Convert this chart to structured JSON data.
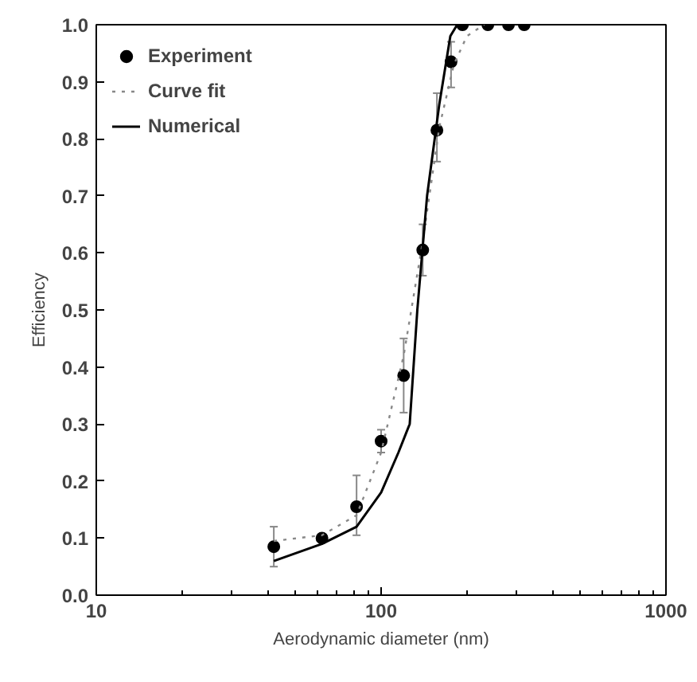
{
  "chart_data": {
    "type": "line",
    "xlabel": "Aerodynamic diameter (nm)",
    "ylabel": "Efficiency",
    "log": "x",
    "xlim": [
      10,
      1000
    ],
    "xticks": [
      10,
      100,
      1000
    ],
    "ylim": [
      0,
      1
    ],
    "yticks": [
      {
        "value": 0,
        "label": "0.0"
      },
      0.1,
      0.2,
      0.3,
      0.4,
      0.5,
      0.6,
      0.7,
      0.8,
      0.9,
      {
        "value": 1,
        "label": "1.0"
      }
    ],
    "grid": false,
    "legend": "top left",
    "series": [
      {
        "name": "Experiment",
        "type": "scatter",
        "marker": "circle",
        "color": "#000000",
        "x": [
          42,
          62,
          82,
          100,
          120,
          140,
          157,
          176,
          193,
          237,
          280,
          318
        ],
        "values": [
          0.085,
          0.1,
          0.155,
          0.27,
          0.385,
          0.605,
          0.815,
          0.935,
          1.0,
          1.0,
          1.0,
          1.0
        ],
        "errors": [
          [
            0.05,
            0.12
          ],
          null,
          [
            0.105,
            0.21
          ],
          [
            0.25,
            0.29
          ],
          [
            0.32,
            0.45
          ],
          [
            0.56,
            0.65
          ],
          [
            0.76,
            0.88
          ],
          [
            0.89,
            0.97
          ],
          null,
          null,
          null,
          null
        ]
      },
      {
        "name": "Curve fit",
        "type": "line",
        "line_style": "dotted",
        "color": "#888888",
        "x": [
          42,
          62,
          82,
          100,
          120,
          140,
          160,
          180,
          200,
          230
        ],
        "values": [
          0.095,
          0.105,
          0.14,
          0.25,
          0.42,
          0.62,
          0.82,
          0.93,
          0.98,
          1.0
        ]
      },
      {
        "name": "Numerical",
        "line_style": "solid",
        "color": "#000000",
        "x": [
          42,
          62,
          82,
          100,
          115,
          126,
          134,
          145,
          160,
          175,
          185
        ],
        "values": [
          0.06,
          0.09,
          0.12,
          0.18,
          0.25,
          0.3,
          0.5,
          0.7,
          0.86,
          0.98,
          1.0
        ]
      }
    ]
  }
}
